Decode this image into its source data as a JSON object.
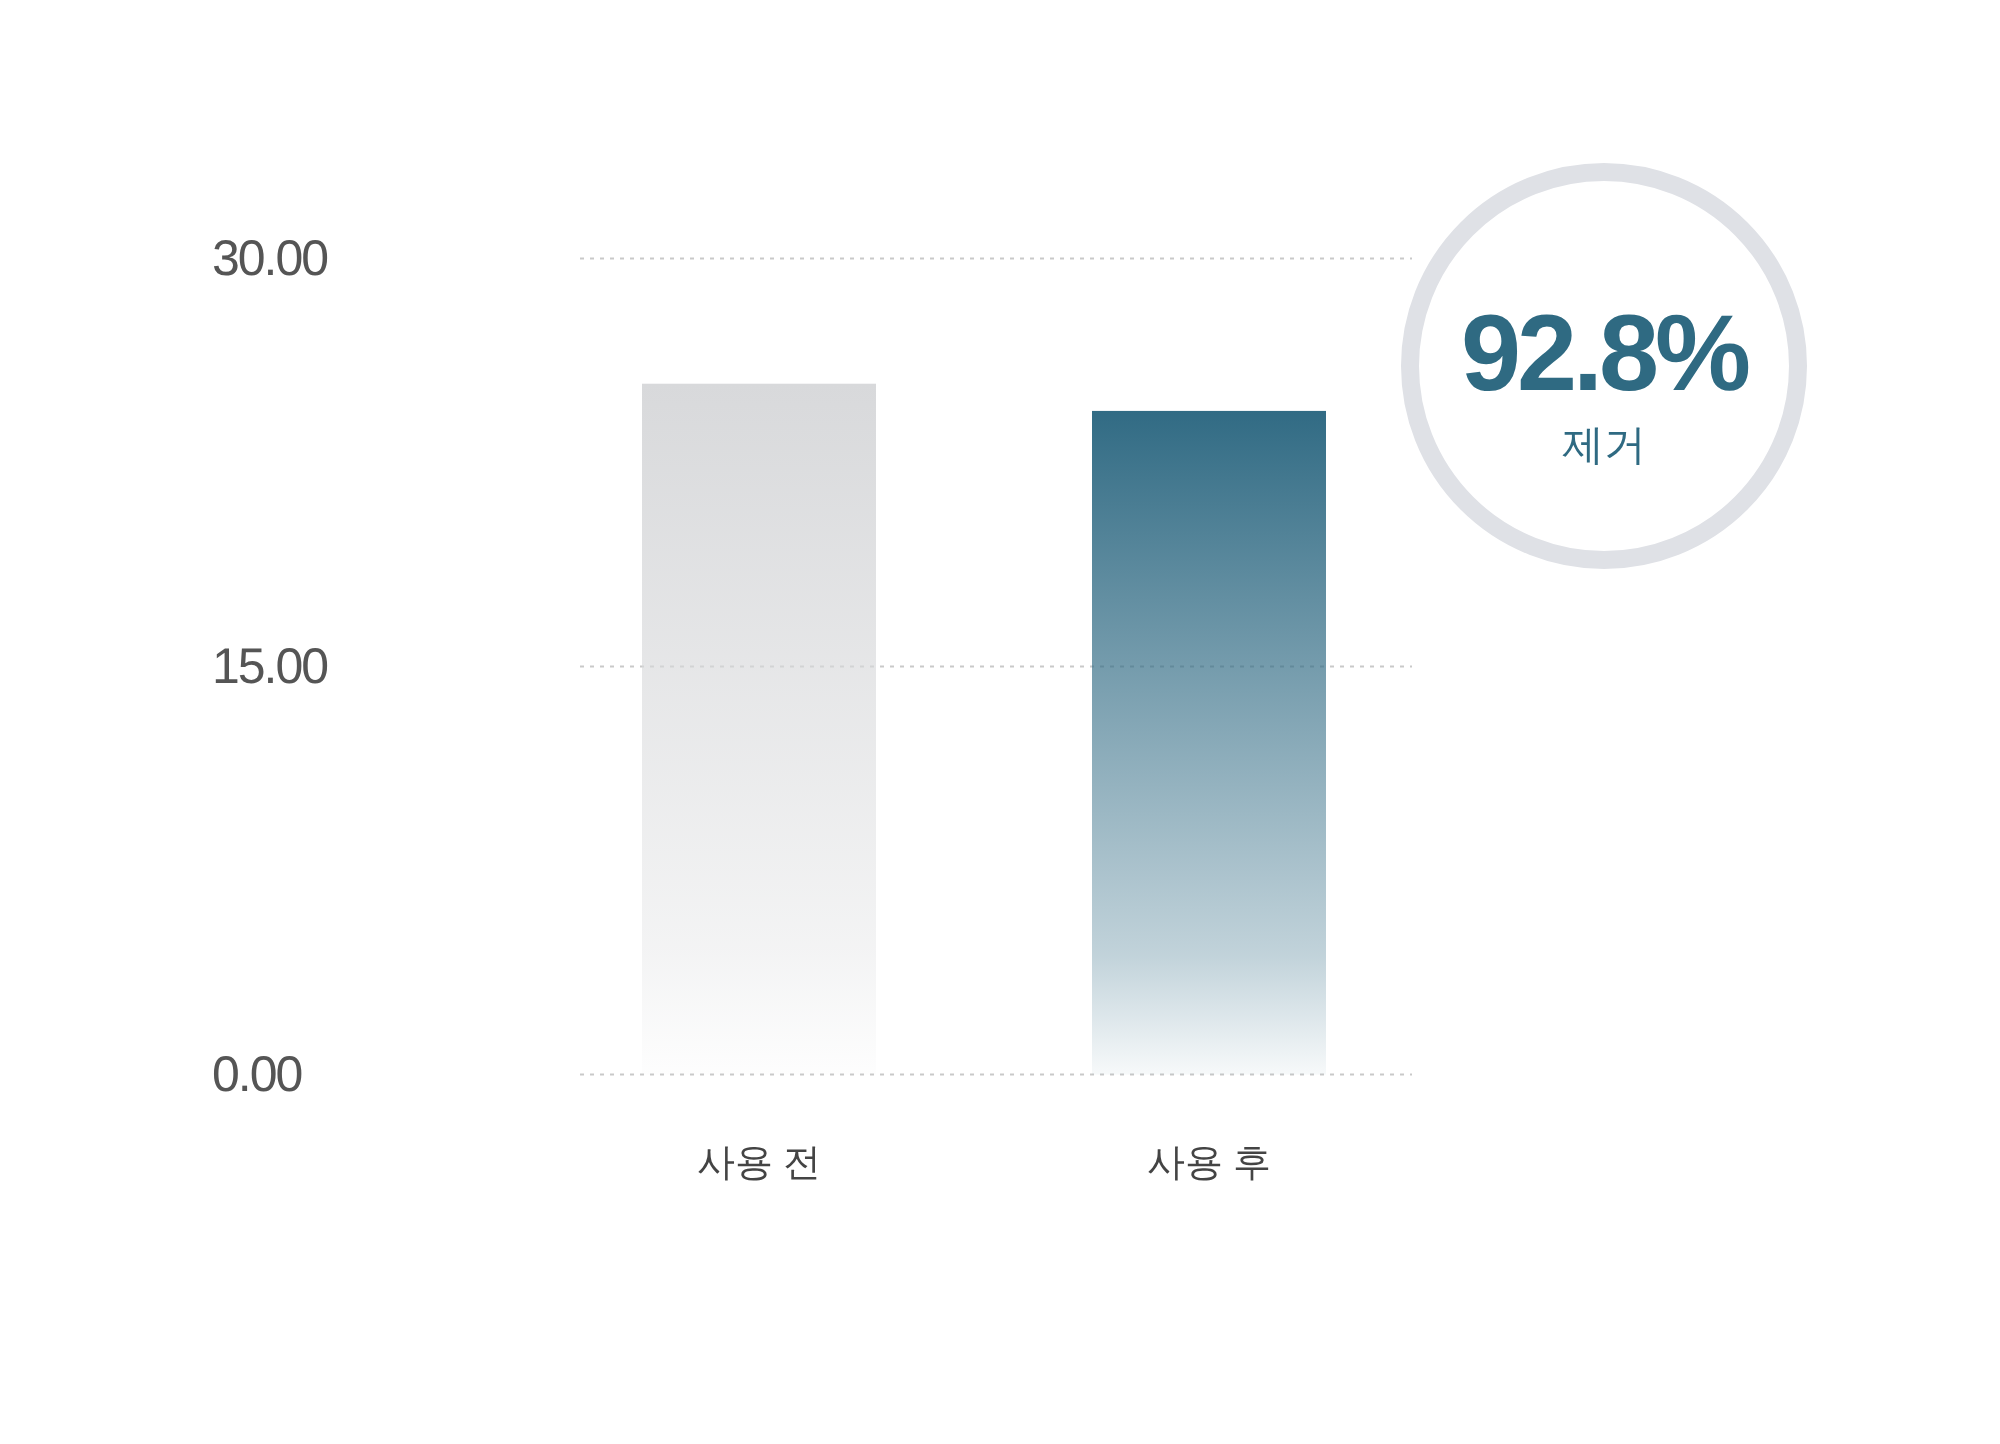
{
  "chart_data": {
    "type": "bar",
    "categories": [
      "사용 전",
      "사용 후"
    ],
    "values": [
      25.4,
      24.4
    ],
    "colors": [
      "#d8d9db",
      "#316b84"
    ],
    "ylim": [
      0,
      30
    ],
    "yticks": [
      {
        "value": 0,
        "label": "0.00"
      },
      {
        "value": 15,
        "label": "15.00"
      },
      {
        "value": 30,
        "label": "30.00"
      }
    ],
    "grid": "y",
    "annotations": [
      "92.8%",
      "제거"
    ]
  }
}
